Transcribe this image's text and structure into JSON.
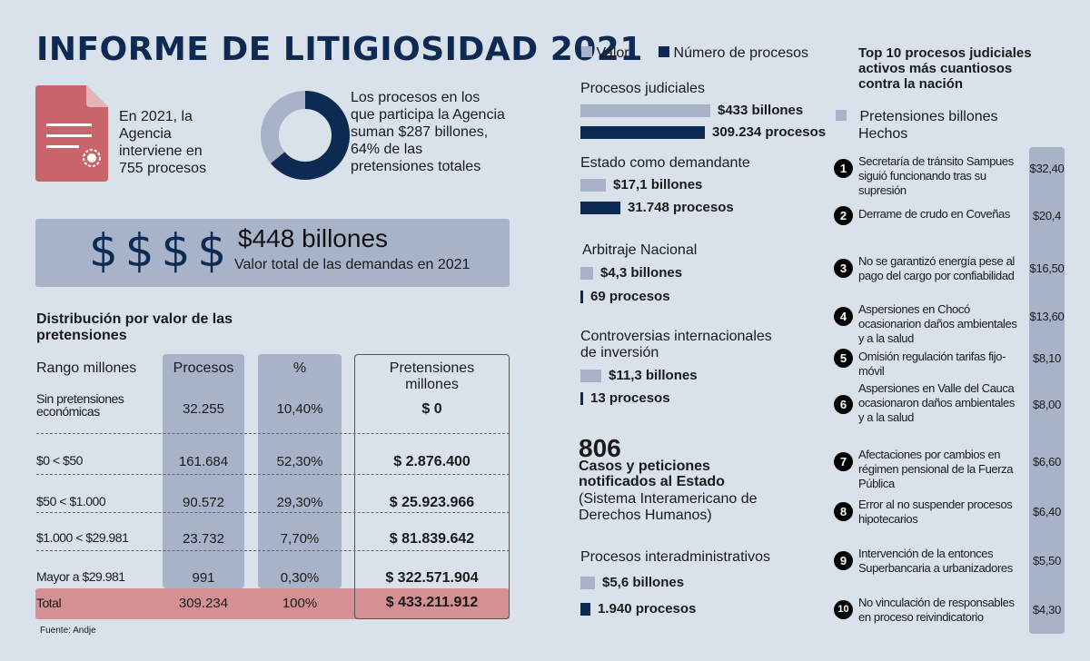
{
  "title": "INFORME DE LITIGIOSIDAD 2021",
  "doc_text": "En 2021, la Agencia interviene en 755 procesos",
  "donut_text": "Los procesos en los que participa la Agencia suman $287 billones, 64% de las pretensiones totales",
  "donut_pct": 64,
  "dollars": "$$$$",
  "total_value": "$448 billones",
  "total_sub": "Valor total de las demandas en 2021",
  "dist_title": "Distribución por valor de las pretensiones",
  "table": {
    "headers": [
      "Rango millones",
      "Procesos",
      "%",
      "Pretensiones millones"
    ],
    "rows": [
      [
        "Sin pretensiones económicas",
        "32.255",
        "10,40%",
        "$ 0"
      ],
      [
        "$0 < $50",
        "161.684",
        "52,30%",
        "$ 2.876.400"
      ],
      [
        "$50 < $1.000",
        "90.572",
        "29,30%",
        "$ 25.923.966"
      ],
      [
        "$1.000 < $29.981",
        "23.732",
        "7,70%",
        "$ 81.839.642"
      ],
      [
        "Mayor a $29.981",
        "991",
        "0,30%",
        "$ 322.571.904"
      ]
    ],
    "total": [
      "Total",
      "309.234",
      "100%",
      "$ 433.211.912"
    ]
  },
  "source": "Fuente: Andje",
  "legend": {
    "valor": "Valor",
    "numero": "Número de procesos"
  },
  "colors": {
    "valor": "#a8b2c8",
    "numero": "#0d2a52",
    "total_row": "#d49093"
  },
  "chart_data": {
    "type": "bar",
    "categories": [
      "Procesos judiciales",
      "Estado como demandante",
      "Arbitraje Nacional",
      "Controversias internacionales de inversión",
      "Procesos interadministrativos"
    ],
    "series": [
      {
        "name": "Valor",
        "values": [
          433,
          17.1,
          4.3,
          11.3,
          5.6
        ],
        "labels": [
          "$433 billones",
          "$17,1 billones",
          "$4,3 billones",
          "$11,3 billones",
          "$5,6 billones"
        ]
      },
      {
        "name": "Número de procesos",
        "values": [
          309234,
          31748,
          69,
          13,
          1940
        ],
        "labels": [
          "309.234 procesos",
          "31.748 procesos",
          "69 procesos",
          "13 procesos",
          "1.940 procesos"
        ]
      }
    ]
  },
  "cases": {
    "number": "806",
    "bold": "Casos y peticiones notificados al Estado",
    "sub": "(Sistema Interamericano de Derechos Humanos)"
  },
  "top10": {
    "title": "Top 10 procesos judiciales activos más cuantiosos contra la nación",
    "legend": "Pretensiones billones",
    "legend2": "Hechos",
    "items": [
      {
        "n": "1",
        "text": "Secretaría de tránsito Sampues siguió funcionando tras su supresión",
        "value": "$32,40"
      },
      {
        "n": "2",
        "text": "Derrame de crudo en Coveñas",
        "value": "$20,4"
      },
      {
        "n": "3",
        "text": "No se garantizó energía pese al pago del cargo por confiabilidad",
        "value": "$16,50"
      },
      {
        "n": "4",
        "text": "Aspersiones en Chocó ocasionarion daños ambientales y a la salud",
        "value": "$13,60"
      },
      {
        "n": "5",
        "text": "Omisión regulación tarifas fijo-móvil",
        "value": "$8,10"
      },
      {
        "n": "6",
        "text": "Aspersiones en Valle del Cauca ocasionaron daños ambientales y a la salud",
        "value": "$8,00"
      },
      {
        "n": "7",
        "text": "Afectaciones por cambios en régimen pensional de la Fuerza Pública",
        "value": "$6,60"
      },
      {
        "n": "8",
        "text": "Error al no suspender procesos hipotecarios",
        "value": "$6,40"
      },
      {
        "n": "9",
        "text": "Intervención de la entonces Superbancaria a urbanizadores",
        "value": "$5,50"
      },
      {
        "n": "10",
        "text": "No vinculación de responsables en proceso reivindicatorio",
        "value": "$4,30"
      }
    ]
  }
}
